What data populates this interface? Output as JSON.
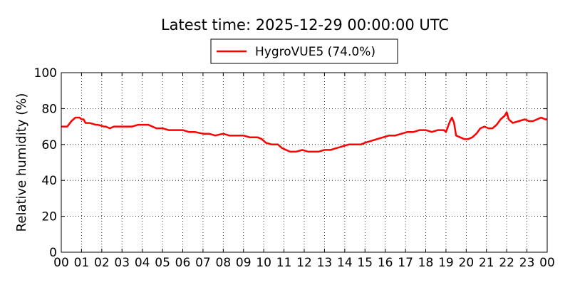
{
  "chart_data": {
    "type": "line",
    "title": "Latest time: 2025-12-29 00:00:00 UTC",
    "xlabel": "",
    "ylabel": "Relative humidity (%)",
    "xlim": [
      0,
      24
    ],
    "ylim": [
      0,
      100
    ],
    "x_tick_labels": [
      "00",
      "01",
      "02",
      "03",
      "04",
      "05",
      "06",
      "07",
      "08",
      "09",
      "10",
      "11",
      "12",
      "13",
      "14",
      "15",
      "16",
      "17",
      "18",
      "19",
      "20",
      "21",
      "22",
      "23",
      "00"
    ],
    "y_ticks": [
      0,
      20,
      40,
      60,
      80,
      100
    ],
    "grid": true,
    "legend_position": "top-center",
    "series": [
      {
        "name": "HygroVUE5 (74.0%)",
        "color": "#ff0000",
        "x": [
          0,
          0.3,
          0.5,
          0.7,
          0.9,
          1.0,
          1.1,
          1.2,
          1.4,
          1.7,
          1.8,
          2.1,
          2.2,
          2.4,
          2.6,
          2.8,
          3.0,
          3.2,
          3.5,
          3.8,
          4.0,
          4.3,
          4.5,
          4.7,
          5.0,
          5.3,
          5.6,
          6.0,
          6.3,
          6.6,
          7.0,
          7.3,
          7.6,
          8.0,
          8.3,
          8.7,
          9.0,
          9.3,
          9.7,
          9.9,
          10.1,
          10.4,
          10.7,
          10.9,
          11.1,
          11.3,
          11.6,
          11.9,
          12.2,
          12.5,
          12.7,
          13.0,
          13.3,
          13.6,
          13.9,
          14.2,
          14.5,
          14.8,
          15.0,
          15.3,
          15.6,
          15.9,
          16.2,
          16.5,
          16.8,
          17.1,
          17.4,
          17.7,
          18.0,
          18.3,
          18.6,
          18.9,
          19.0,
          19.1,
          19.2,
          19.3,
          19.4,
          19.5,
          19.7,
          19.9,
          20.1,
          20.3,
          20.5,
          20.7,
          20.9,
          21.1,
          21.3,
          21.5,
          21.7,
          21.9,
          22.0,
          22.1,
          22.3,
          22.6,
          22.9,
          23.1,
          23.3,
          23.5,
          23.7,
          23.9,
          24.0
        ],
        "y": [
          70,
          70,
          73,
          75,
          75,
          74,
          74,
          72,
          72,
          71,
          71,
          70,
          70,
          69,
          70,
          70,
          70,
          70,
          70,
          71,
          71,
          71,
          70,
          69,
          69,
          68,
          68,
          68,
          67,
          67,
          66,
          66,
          65,
          66,
          65,
          65,
          65,
          64,
          64,
          63,
          61,
          60,
          60,
          58,
          57,
          56,
          56,
          57,
          56,
          56,
          56,
          57,
          57,
          58,
          59,
          60,
          60,
          60,
          61,
          62,
          63,
          64,
          65,
          65,
          66,
          67,
          67,
          68,
          68,
          67,
          68,
          68,
          67,
          70,
          73,
          75,
          72,
          65,
          64,
          63,
          63,
          64,
          66,
          69,
          70,
          69,
          69,
          71,
          74,
          76,
          78,
          74,
          72,
          73,
          74,
          73,
          73,
          74,
          75,
          74,
          74
        ]
      }
    ]
  }
}
